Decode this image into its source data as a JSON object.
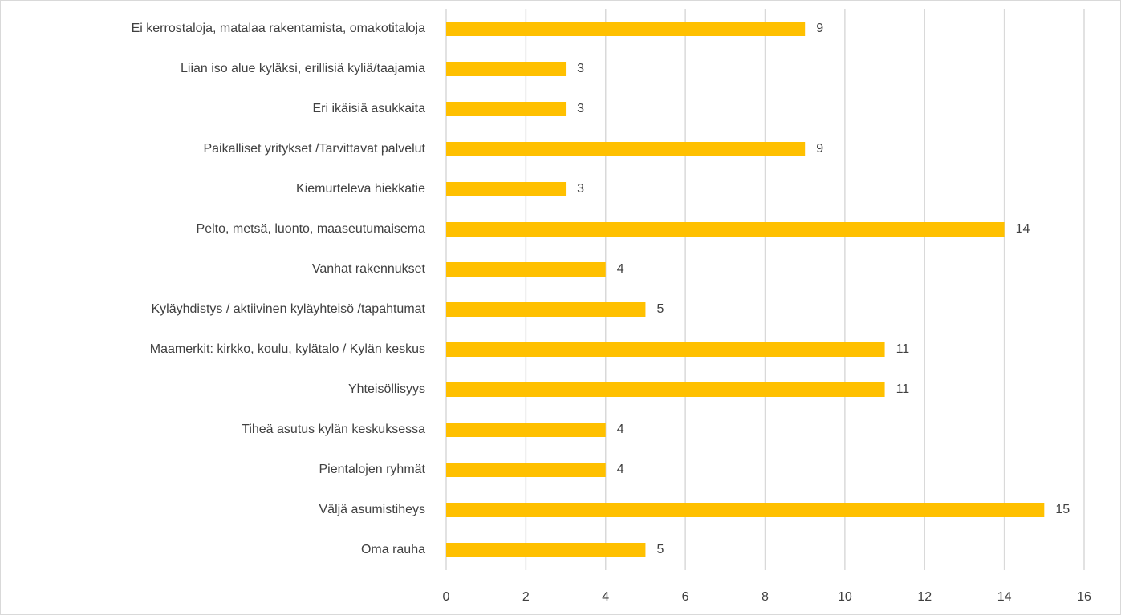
{
  "chart_data": {
    "type": "barh",
    "categories": [
      "Ei kerrostaloja, matalaa rakentamista, omakotitaloja",
      "Liian iso alue kyläksi, erillisiä kyliä/taajamia",
      "Eri ikäisiä asukkaita",
      "Paikalliset yritykset /Tarvittavat palvelut",
      "Kiemurteleva hiekkatie",
      "Pelto, metsä, luonto, maaseutumaisema",
      "Vanhat rakennukset",
      "Kyläyhdistys / aktiivinen kyläyhteisö /tapahtumat",
      "Maamerkit: kirkko, koulu, kylätalo / Kylän keskus",
      "Yhteisöllisyys",
      "Tiheä asutus kylän keskuksessa",
      "Pientalojen ryhmät",
      "Väljä asumistiheys",
      "Oma rauha"
    ],
    "values": [
      9,
      3,
      3,
      9,
      3,
      14,
      4,
      5,
      11,
      11,
      4,
      4,
      15,
      5
    ],
    "color": "#ffc000",
    "xlim": [
      0,
      16
    ],
    "xticks": [
      0,
      2,
      4,
      6,
      8,
      10,
      12,
      14,
      16
    ],
    "grid": true
  }
}
